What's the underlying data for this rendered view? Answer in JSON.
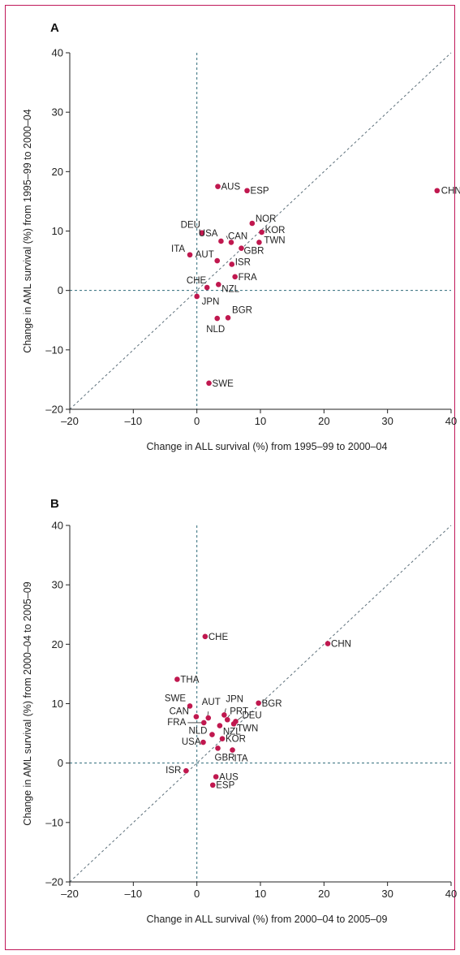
{
  "colors": {
    "frame": "#c0185a",
    "point": "#c0184f",
    "zero_line": "#2f6b7a",
    "diagonal": "#5c6f7a",
    "axis": "#222222"
  },
  "chart_data": [
    {
      "panel": "A",
      "type": "scatter",
      "xlabel": "Change in ALL survival (%) from 1995–99 to 2000–04",
      "ylabel": "Change in AML survival (%) from 1995–99 to 2000–04",
      "xlim": [
        -20,
        40
      ],
      "ylim": [
        -20,
        40
      ],
      "x_ticks": [
        "–20",
        "–10",
        "0",
        "10",
        "20",
        "30",
        "40"
      ],
      "y_ticks": [
        "–20",
        "–10",
        "0",
        "10",
        "20",
        "30",
        "40"
      ],
      "reference_lines": [
        "x=0",
        "y=0",
        "y=x"
      ],
      "points": [
        {
          "label": "CHN",
          "x": 37.8,
          "y": 16.8
        },
        {
          "label": "AUS",
          "x": 3.3,
          "y": 17.5
        },
        {
          "label": "ESP",
          "x": 7.9,
          "y": 16.8
        },
        {
          "label": "NOR",
          "x": 8.7,
          "y": 11.3
        },
        {
          "label": "KOR",
          "x": 10.2,
          "y": 9.8
        },
        {
          "label": "TWN",
          "x": 9.8,
          "y": 8.1
        },
        {
          "label": "DEU",
          "x": 0.8,
          "y": 9.7
        },
        {
          "label": "USA",
          "x": 3.8,
          "y": 8.3
        },
        {
          "label": "CAN",
          "x": 5.4,
          "y": 8.1
        },
        {
          "label": "GBR",
          "x": 7.0,
          "y": 7.1
        },
        {
          "label": "ITA",
          "x": -1.1,
          "y": 6.0
        },
        {
          "label": "AUT",
          "x": 3.2,
          "y": 5.0
        },
        {
          "label": "ISR",
          "x": 5.5,
          "y": 4.4
        },
        {
          "label": "FRA",
          "x": 6.0,
          "y": 2.3
        },
        {
          "label": "CHE",
          "x": 1.6,
          "y": 0.5
        },
        {
          "label": "NZL",
          "x": 3.4,
          "y": 1.0
        },
        {
          "label": "JPN",
          "x": 0.0,
          "y": -1.0
        },
        {
          "label": "BGR",
          "x": 4.9,
          "y": -4.6
        },
        {
          "label": "NLD",
          "x": 3.2,
          "y": -4.7
        },
        {
          "label": "SWE",
          "x": 1.9,
          "y": -15.6
        }
      ]
    },
    {
      "panel": "B",
      "type": "scatter",
      "xlabel": "Change in ALL survival (%) from 2000–04 to 2005–09",
      "ylabel": "Change in AML survival (%) from 2000–04 to 2005–09",
      "xlim": [
        -20,
        40
      ],
      "ylim": [
        -20,
        40
      ],
      "x_ticks": [
        "–20",
        "–10",
        "0",
        "10",
        "20",
        "30",
        "40"
      ],
      "y_ticks": [
        "–20",
        "–10",
        "0",
        "10",
        "20",
        "30",
        "40"
      ],
      "reference_lines": [
        "x=0",
        "y=0",
        "y=x"
      ],
      "points": [
        {
          "label": "CHE",
          "x": 1.3,
          "y": 21.3
        },
        {
          "label": "CHN",
          "x": 20.6,
          "y": 20.1
        },
        {
          "label": "THA",
          "x": -3.1,
          "y": 14.1
        },
        {
          "label": "SWE",
          "x": -1.1,
          "y": 9.6
        },
        {
          "label": "BGR",
          "x": 9.7,
          "y": 10.1
        },
        {
          "label": "CAN",
          "x": -0.1,
          "y": 7.8
        },
        {
          "label": "AUT",
          "x": 1.8,
          "y": 7.6
        },
        {
          "label": "JPN",
          "x": 4.3,
          "y": 8.1
        },
        {
          "label": "PRT",
          "x": 4.8,
          "y": 7.3
        },
        {
          "label": "DEU",
          "x": 6.1,
          "y": 7.0
        },
        {
          "label": "FRA",
          "x": 1.1,
          "y": 6.8
        },
        {
          "label": "TWN",
          "x": 5.8,
          "y": 6.6
        },
        {
          "label": "NZL",
          "x": 3.6,
          "y": 6.3
        },
        {
          "label": "NLD",
          "x": 2.4,
          "y": 4.8
        },
        {
          "label": "KOR",
          "x": 4.0,
          "y": 4.1
        },
        {
          "label": "USA",
          "x": 1.0,
          "y": 3.5
        },
        {
          "label": "GBR",
          "x": 3.3,
          "y": 2.5
        },
        {
          "label": "ITA",
          "x": 5.6,
          "y": 2.2
        },
        {
          "label": "ISR",
          "x": -1.7,
          "y": -1.3
        },
        {
          "label": "AUS",
          "x": 3.0,
          "y": -2.3
        },
        {
          "label": "ESP",
          "x": 2.5,
          "y": -3.7
        }
      ]
    }
  ]
}
